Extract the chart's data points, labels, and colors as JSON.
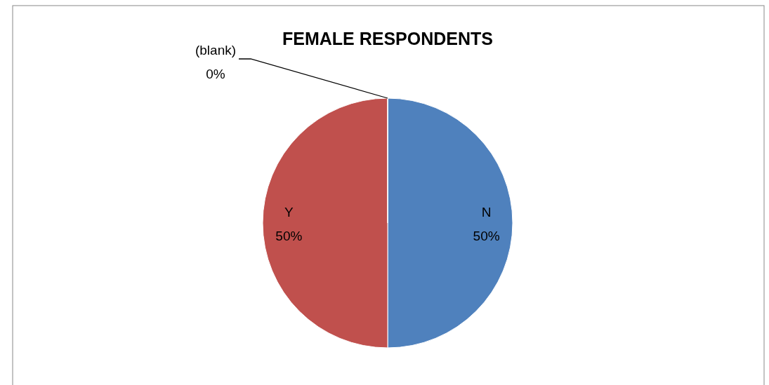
{
  "chart_data": {
    "type": "pie",
    "title": "FEMALE RESPONDENTS",
    "categories": [
      "N",
      "Y",
      "(blank)"
    ],
    "values": [
      50,
      50,
      0
    ],
    "colors": [
      "#4f81bd",
      "#c0504d",
      "#9bbb59"
    ],
    "value_labels": [
      "50%",
      "50%",
      "0%"
    ]
  }
}
